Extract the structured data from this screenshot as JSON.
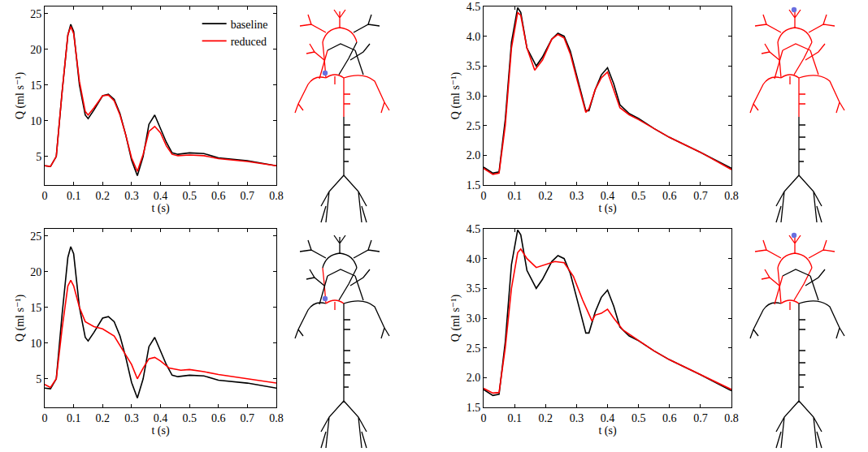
{
  "chart_data": [
    {
      "type": "line",
      "x_label": "t (s)",
      "y_label": "Q (ml s⁻¹)",
      "xlim": [
        0,
        0.8
      ],
      "xticks": [
        0,
        0.1,
        0.2,
        0.3,
        0.4,
        0.5,
        0.6,
        0.7,
        0.8
      ],
      "ylim": [
        1,
        26
      ],
      "yticks": [
        5,
        10,
        15,
        20,
        25
      ],
      "legend": "upper right",
      "series": [
        {
          "name": "baseline",
          "color": "#000000",
          "line_style": "solid",
          "x": [
            0,
            0.02,
            0.04,
            0.06,
            0.08,
            0.09,
            0.1,
            0.12,
            0.14,
            0.15,
            0.17,
            0.2,
            0.22,
            0.24,
            0.26,
            0.28,
            0.3,
            0.32,
            0.34,
            0.36,
            0.38,
            0.4,
            0.42,
            0.44,
            0.46,
            0.5,
            0.55,
            0.6,
            0.7,
            0.8
          ],
          "values": [
            3.7,
            3.6,
            5,
            14,
            22,
            23.5,
            22.5,
            15,
            10.8,
            10.3,
            11.5,
            13.5,
            13.7,
            13,
            11,
            8,
            4.5,
            2.3,
            5,
            9.5,
            10.8,
            9,
            7,
            5.5,
            5.3,
            5.5,
            5.4,
            4.8,
            4.4,
            3.7
          ]
        },
        {
          "name": "reduced",
          "color": "#ff0000",
          "line_style": "solid",
          "x": [
            0,
            0.02,
            0.04,
            0.06,
            0.08,
            0.09,
            0.1,
            0.12,
            0.14,
            0.15,
            0.17,
            0.2,
            0.22,
            0.24,
            0.26,
            0.28,
            0.3,
            0.32,
            0.34,
            0.36,
            0.38,
            0.4,
            0.42,
            0.44,
            0.46,
            0.5,
            0.55,
            0.6,
            0.7,
            0.8
          ],
          "values": [
            3.7,
            3.6,
            5,
            14,
            22,
            23.2,
            22.2,
            15.5,
            11.3,
            10.8,
            11.8,
            13.5,
            13.6,
            12.8,
            10.8,
            8,
            4.8,
            2.9,
            5.3,
            8.5,
            9.2,
            8.3,
            6.5,
            5.3,
            5.1,
            5.2,
            5.1,
            4.7,
            4.3,
            3.7
          ]
        }
      ]
    },
    {
      "type": "line",
      "x_label": "t (s)",
      "y_label": "Q (ml s⁻¹)",
      "xlim": [
        0,
        0.8
      ],
      "xticks": [
        0,
        0.1,
        0.2,
        0.3,
        0.4,
        0.5,
        0.6,
        0.7,
        0.8
      ],
      "ylim": [
        1.5,
        4.5
      ],
      "yticks": [
        1.5,
        {
          "value": 2,
          "label": "2.0"
        },
        2.5,
        {
          "value": 3,
          "label": "3.0"
        },
        3.5,
        {
          "value": 4,
          "label": "4.0"
        },
        4.5
      ],
      "series": [
        {
          "name": "baseline",
          "color": "#000000",
          "line_style": "solid",
          "x": [
            0,
            0.03,
            0.05,
            0.07,
            0.09,
            0.11,
            0.12,
            0.14,
            0.17,
            0.19,
            0.22,
            0.24,
            0.26,
            0.28,
            0.3,
            0.33,
            0.34,
            0.36,
            0.38,
            0.4,
            0.42,
            0.44,
            0.47,
            0.5,
            0.55,
            0.6,
            0.7,
            0.8
          ],
          "values": [
            1.8,
            1.7,
            1.72,
            2.6,
            3.9,
            4.48,
            4.4,
            3.8,
            3.5,
            3.65,
            3.95,
            4.05,
            4.0,
            3.75,
            3.35,
            2.75,
            2.75,
            3.1,
            3.35,
            3.47,
            3.2,
            2.85,
            2.7,
            2.62,
            2.45,
            2.3,
            2.05,
            1.78
          ]
        },
        {
          "name": "reduced",
          "color": "#ff0000",
          "line_style": "solid",
          "x": [
            0,
            0.03,
            0.05,
            0.07,
            0.09,
            0.11,
            0.12,
            0.14,
            0.165,
            0.19,
            0.22,
            0.24,
            0.26,
            0.28,
            0.3,
            0.33,
            0.34,
            0.36,
            0.38,
            0.4,
            0.42,
            0.44,
            0.47,
            0.5,
            0.55,
            0.6,
            0.7,
            0.8
          ],
          "values": [
            1.78,
            1.68,
            1.7,
            2.5,
            3.8,
            4.4,
            4.35,
            3.8,
            3.43,
            3.6,
            3.95,
            4.03,
            3.97,
            3.7,
            3.3,
            2.72,
            2.78,
            3.1,
            3.3,
            3.4,
            3.1,
            2.8,
            2.68,
            2.6,
            2.45,
            2.3,
            2.05,
            1.76
          ]
        }
      ]
    },
    {
      "type": "line",
      "x_label": "t (s)",
      "y_label": "Q (ml s⁻¹)",
      "xlim": [
        0,
        0.8
      ],
      "xticks": [
        0,
        0.1,
        0.2,
        0.3,
        0.4,
        0.5,
        0.6,
        0.7,
        0.8
      ],
      "ylim": [
        1,
        26
      ],
      "yticks": [
        5,
        10,
        15,
        20,
        25
      ],
      "series": [
        {
          "name": "baseline",
          "color": "#000000",
          "line_style": "solid",
          "x": [
            0,
            0.02,
            0.04,
            0.06,
            0.08,
            0.09,
            0.1,
            0.12,
            0.14,
            0.15,
            0.17,
            0.2,
            0.22,
            0.24,
            0.26,
            0.28,
            0.3,
            0.32,
            0.34,
            0.36,
            0.38,
            0.4,
            0.42,
            0.44,
            0.46,
            0.5,
            0.55,
            0.6,
            0.7,
            0.8
          ],
          "values": [
            3.7,
            3.6,
            5,
            14,
            22,
            23.5,
            22.5,
            15,
            10.8,
            10.3,
            11.5,
            13.5,
            13.7,
            13,
            11,
            8,
            4.5,
            2.3,
            5,
            9.5,
            10.8,
            9,
            7,
            5.5,
            5.3,
            5.5,
            5.4,
            4.8,
            4.4,
            3.7
          ]
        },
        {
          "name": "reduced",
          "color": "#ff0000",
          "line_style": "solid",
          "x": [
            0,
            0.02,
            0.04,
            0.06,
            0.08,
            0.09,
            0.1,
            0.12,
            0.14,
            0.17,
            0.2,
            0.24,
            0.27,
            0.3,
            0.32,
            0.34,
            0.36,
            0.38,
            0.4,
            0.43,
            0.47,
            0.5,
            0.55,
            0.6,
            0.7,
            0.8
          ],
          "values": [
            4.2,
            3.8,
            5,
            12,
            18,
            18.8,
            18,
            15,
            13,
            12.3,
            12,
            11,
            9,
            7,
            5,
            6.5,
            7.8,
            8,
            7.5,
            6.5,
            6.2,
            6.3,
            6,
            5.6,
            5,
            4.4
          ]
        }
      ]
    },
    {
      "type": "line",
      "x_label": "t (s)",
      "y_label": "Q (ml s⁻¹)",
      "xlim": [
        0,
        0.8
      ],
      "xticks": [
        0,
        0.1,
        0.2,
        0.3,
        0.4,
        0.5,
        0.6,
        0.7,
        0.8
      ],
      "ylim": [
        1.5,
        4.5
      ],
      "yticks": [
        1.5,
        {
          "value": 2,
          "label": "2.0"
        },
        2.5,
        {
          "value": 3,
          "label": "3.0"
        },
        3.5,
        {
          "value": 4,
          "label": "4.0"
        },
        4.5
      ],
      "series": [
        {
          "name": "baseline",
          "color": "#000000",
          "line_style": "solid",
          "x": [
            0,
            0.03,
            0.05,
            0.07,
            0.09,
            0.11,
            0.12,
            0.14,
            0.17,
            0.19,
            0.22,
            0.24,
            0.26,
            0.28,
            0.3,
            0.33,
            0.34,
            0.36,
            0.38,
            0.4,
            0.42,
            0.44,
            0.47,
            0.5,
            0.55,
            0.6,
            0.7,
            0.8
          ],
          "values": [
            1.8,
            1.7,
            1.72,
            2.6,
            3.9,
            4.48,
            4.4,
            3.8,
            3.5,
            3.65,
            3.95,
            4.05,
            4.0,
            3.75,
            3.35,
            2.75,
            2.75,
            3.1,
            3.35,
            3.47,
            3.2,
            2.85,
            2.7,
            2.62,
            2.45,
            2.3,
            2.05,
            1.78
          ]
        },
        {
          "name": "reduced",
          "color": "#ff0000",
          "line_style": "solid",
          "x": [
            0,
            0.03,
            0.05,
            0.07,
            0.09,
            0.11,
            0.12,
            0.14,
            0.17,
            0.2,
            0.23,
            0.26,
            0.29,
            0.32,
            0.35,
            0.36,
            0.38,
            0.4,
            0.42,
            0.45,
            0.5,
            0.55,
            0.6,
            0.7,
            0.8
          ],
          "values": [
            1.82,
            1.74,
            1.75,
            2.5,
            3.5,
            4.1,
            4.16,
            4.0,
            3.85,
            3.9,
            3.95,
            3.93,
            3.7,
            3.3,
            2.95,
            3.05,
            3.08,
            3.15,
            3.0,
            2.8,
            2.62,
            2.45,
            2.3,
            2.05,
            1.8
          ]
        }
      ]
    }
  ]
}
